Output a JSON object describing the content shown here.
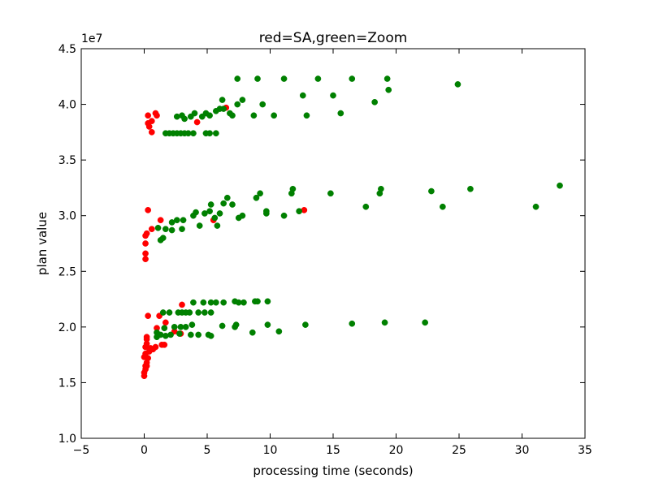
{
  "chart_data": {
    "type": "scatter",
    "title": "red=SA,green=Zoom",
    "xlabel": "processing time (seconds)",
    "ylabel": "plan value",
    "y_offset_label": "1e7",
    "xlim": [
      -5,
      35
    ],
    "ylim": [
      10000000,
      45000000
    ],
    "y_scale": 10000000,
    "grid": false,
    "x_ticks": [
      -5,
      0,
      5,
      10,
      15,
      20,
      25,
      30,
      35
    ],
    "x_tick_labels": [
      "−5",
      "0",
      "5",
      "10",
      "15",
      "20",
      "25",
      "30",
      "35"
    ],
    "y_ticks": [
      10000000,
      15000000,
      20000000,
      25000000,
      30000000,
      35000000,
      40000000,
      45000000
    ],
    "y_tick_labels": [
      "1.0",
      "1.5",
      "2.0",
      "2.5",
      "3.0",
      "3.5",
      "4.0",
      "4.5"
    ],
    "series": [
      {
        "color": "#ff0000",
        "points": [
          [
            0.3,
            39000000
          ],
          [
            0.3,
            38300000
          ],
          [
            0.4,
            38000000
          ],
          [
            0.6,
            38500000
          ],
          [
            0.6,
            37500000
          ],
          [
            0.9,
            39200000
          ],
          [
            1.0,
            39000000
          ],
          [
            4.2,
            38400000
          ],
          [
            6.5,
            39700000
          ],
          [
            0.1,
            28200000
          ],
          [
            0.2,
            28400000
          ],
          [
            0.3,
            30500000
          ],
          [
            0.6,
            28800000
          ],
          [
            1.3,
            29600000
          ],
          [
            0.1,
            27500000
          ],
          [
            0.1,
            26600000
          ],
          [
            0.1,
            26100000
          ],
          [
            5.5,
            29600000
          ],
          [
            12.7,
            30500000
          ],
          [
            0.0,
            15600000
          ],
          [
            0.0,
            15900000
          ],
          [
            0.1,
            16200000
          ],
          [
            0.1,
            16500000
          ],
          [
            0.2,
            16500000
          ],
          [
            0.2,
            16800000
          ],
          [
            0.3,
            17200000
          ],
          [
            0.0,
            17300000
          ],
          [
            0.1,
            17600000
          ],
          [
            0.4,
            17800000
          ],
          [
            0.5,
            18100000
          ],
          [
            0.1,
            18200000
          ],
          [
            0.2,
            18500000
          ],
          [
            0.2,
            18900000
          ],
          [
            0.2,
            19100000
          ],
          [
            0.3,
            21000000
          ],
          [
            0.7,
            18000000
          ],
          [
            0.9,
            18200000
          ],
          [
            1.0,
            19900000
          ],
          [
            1.2,
            21000000
          ],
          [
            1.4,
            18400000
          ],
          [
            1.6,
            18400000
          ],
          [
            1.7,
            20400000
          ],
          [
            2.4,
            19600000
          ],
          [
            2.9,
            19400000
          ],
          [
            3.0,
            22000000
          ]
        ]
      },
      {
        "color": "#008000",
        "points": [
          [
            7.4,
            42300000
          ],
          [
            9.0,
            42300000
          ],
          [
            11.1,
            42300000
          ],
          [
            13.8,
            42300000
          ],
          [
            16.5,
            42300000
          ],
          [
            19.3,
            42300000
          ],
          [
            19.4,
            41300000
          ],
          [
            24.9,
            41800000
          ],
          [
            12.6,
            40800000
          ],
          [
            15.0,
            40800000
          ],
          [
            18.3,
            40200000
          ],
          [
            6.2,
            40400000
          ],
          [
            7.8,
            40400000
          ],
          [
            7.4,
            40000000
          ],
          [
            9.4,
            40000000
          ],
          [
            5.7,
            39400000
          ],
          [
            6.0,
            39600000
          ],
          [
            6.3,
            39600000
          ],
          [
            6.8,
            39200000
          ],
          [
            7.0,
            39000000
          ],
          [
            8.7,
            39000000
          ],
          [
            10.3,
            39000000
          ],
          [
            12.9,
            39000000
          ],
          [
            15.6,
            39200000
          ],
          [
            2.6,
            38900000
          ],
          [
            3.2,
            38700000
          ],
          [
            3.0,
            39000000
          ],
          [
            3.7,
            38900000
          ],
          [
            4.0,
            39200000
          ],
          [
            4.6,
            38900000
          ],
          [
            4.9,
            39200000
          ],
          [
            5.2,
            39000000
          ],
          [
            1.7,
            37400000
          ],
          [
            2.0,
            37400000
          ],
          [
            2.3,
            37400000
          ],
          [
            2.6,
            37400000
          ],
          [
            2.9,
            37400000
          ],
          [
            3.2,
            37400000
          ],
          [
            3.5,
            37400000
          ],
          [
            3.9,
            37400000
          ],
          [
            4.9,
            37400000
          ],
          [
            5.2,
            37400000
          ],
          [
            5.7,
            37400000
          ],
          [
            33.0,
            32700000
          ],
          [
            25.9,
            32400000
          ],
          [
            22.8,
            32200000
          ],
          [
            18.8,
            32400000
          ],
          [
            18.7,
            32000000
          ],
          [
            14.8,
            32000000
          ],
          [
            11.8,
            32400000
          ],
          [
            11.7,
            32000000
          ],
          [
            9.2,
            32000000
          ],
          [
            8.9,
            31600000
          ],
          [
            6.6,
            31600000
          ],
          [
            6.3,
            31100000
          ],
          [
            5.3,
            31000000
          ],
          [
            7.0,
            31000000
          ],
          [
            31.1,
            30800000
          ],
          [
            23.7,
            30800000
          ],
          [
            17.6,
            30800000
          ],
          [
            12.3,
            30400000
          ],
          [
            9.7,
            30400000
          ],
          [
            9.7,
            30200000
          ],
          [
            5.2,
            30400000
          ],
          [
            6.0,
            30200000
          ],
          [
            4.8,
            30200000
          ],
          [
            3.9,
            30000000
          ],
          [
            4.1,
            30300000
          ],
          [
            2.6,
            29600000
          ],
          [
            2.2,
            29400000
          ],
          [
            3.1,
            29600000
          ],
          [
            11.1,
            30000000
          ],
          [
            7.8,
            30000000
          ],
          [
            7.5,
            29800000
          ],
          [
            5.6,
            29800000
          ],
          [
            4.4,
            29100000
          ],
          [
            5.8,
            29100000
          ],
          [
            3.0,
            28800000
          ],
          [
            2.2,
            28700000
          ],
          [
            1.7,
            28800000
          ],
          [
            1.1,
            28900000
          ],
          [
            1.5,
            28000000
          ],
          [
            1.3,
            27800000
          ],
          [
            22.3,
            20400000
          ],
          [
            19.1,
            20400000
          ],
          [
            16.5,
            20300000
          ],
          [
            12.8,
            20200000
          ],
          [
            9.8,
            20200000
          ],
          [
            7.3,
            20200000
          ],
          [
            7.2,
            20000000
          ],
          [
            10.7,
            19600000
          ],
          [
            8.6,
            19500000
          ],
          [
            6.2,
            20100000
          ],
          [
            5.1,
            19300000
          ],
          [
            5.3,
            19200000
          ],
          [
            3.7,
            19300000
          ],
          [
            4.3,
            19300000
          ],
          [
            3.8,
            20200000
          ],
          [
            3.3,
            20000000
          ],
          [
            2.4,
            20000000
          ],
          [
            2.9,
            20000000
          ],
          [
            1.6,
            19900000
          ],
          [
            1.0,
            19500000
          ],
          [
            1.0,
            19100000
          ],
          [
            1.3,
            19300000
          ],
          [
            1.7,
            19200000
          ],
          [
            2.1,
            19300000
          ],
          [
            2.8,
            19400000
          ],
          [
            1.5,
            21300000
          ],
          [
            2.0,
            21300000
          ],
          [
            2.7,
            21300000
          ],
          [
            3.0,
            21300000
          ],
          [
            3.3,
            21300000
          ],
          [
            3.6,
            21300000
          ],
          [
            4.3,
            21300000
          ],
          [
            4.8,
            21300000
          ],
          [
            5.3,
            21300000
          ],
          [
            3.9,
            22200000
          ],
          [
            4.7,
            22200000
          ],
          [
            5.3,
            22200000
          ],
          [
            5.7,
            22200000
          ],
          [
            6.3,
            22200000
          ],
          [
            7.2,
            22300000
          ],
          [
            7.5,
            22200000
          ],
          [
            7.9,
            22200000
          ],
          [
            8.8,
            22300000
          ],
          [
            9.0,
            22300000
          ],
          [
            9.8,
            22300000
          ]
        ]
      }
    ]
  }
}
